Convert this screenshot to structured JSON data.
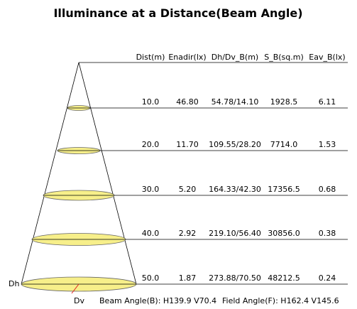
{
  "title": "Illuminance at a Distance(Beam Angle)",
  "headers": [
    "Dist(m)",
    "Enadir(lx)",
    "Dh/Dv_B(m)",
    "S_B(sq.m)",
    "Eav_B(lx)"
  ],
  "rows": [
    [
      "10.0",
      "46.80",
      "54.78/14.10",
      "1928.5",
      "6.11"
    ],
    [
      "20.0",
      "11.70",
      "109.55/28.20",
      "7714.0",
      "1.53"
    ],
    [
      "30.0",
      "5.20",
      "164.33/42.30",
      "17356.5",
      "0.68"
    ],
    [
      "40.0",
      "2.92",
      "219.10/56.40",
      "30856.0",
      "0.38"
    ],
    [
      "50.0",
      "1.87",
      "273.88/70.50",
      "48212.5",
      "0.24"
    ]
  ],
  "dh_label": "Dh",
  "dv_label": "Dv",
  "beam_angle": "Beam Angle(B): H139.9 V70.4",
  "field_angle": "Field Angle(F): H162.4 V145.6"
}
